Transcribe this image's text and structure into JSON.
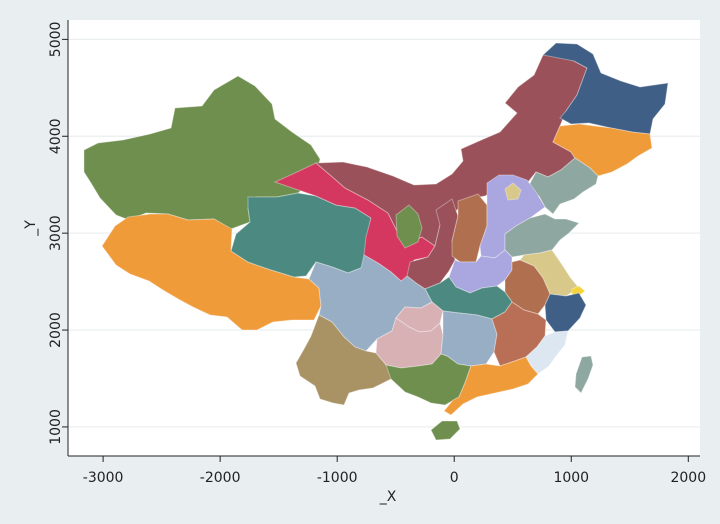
{
  "chart_data": {
    "type": "map",
    "xlabel": "_X",
    "ylabel": "_Y",
    "xlim": [
      -3300,
      2100
    ],
    "ylim": [
      700,
      5200
    ],
    "xticks": [
      -3000,
      -2000,
      -1000,
      0,
      1000,
      2000
    ],
    "yticks": [
      1000,
      2000,
      3000,
      4000,
      5000
    ],
    "xtick_labels": [
      "-3000",
      "-2000",
      "-1000",
      "0",
      "1000",
      "2000"
    ],
    "ytick_labels": [
      "1000",
      "2000",
      "3000",
      "4000",
      "5000"
    ],
    "grid": true,
    "regions": [
      {
        "name": "Heilongjiang",
        "color": "#3f5f86"
      },
      {
        "name": "Jilin",
        "color": "#ef9b3a"
      },
      {
        "name": "Liaoning",
        "color": "#8ea7a0"
      },
      {
        "name": "Inner Mongolia",
        "color": "#9a5159"
      },
      {
        "name": "Xinjiang",
        "color": "#6f8f4f"
      },
      {
        "name": "Gansu",
        "color": "#d4375f"
      },
      {
        "name": "Qinghai",
        "color": "#4c8a81"
      },
      {
        "name": "Tibet",
        "color": "#ef9b3a"
      },
      {
        "name": "Ningxia",
        "color": "#6f8f4f"
      },
      {
        "name": "Shanxi",
        "color": "#b07050"
      },
      {
        "name": "Hebei",
        "color": "#aaa6df"
      },
      {
        "name": "Shandong",
        "color": "#8ea7a0"
      },
      {
        "name": "Beijing",
        "color": "#d8c98a"
      },
      {
        "name": "Henan",
        "color": "#aaa6df"
      },
      {
        "name": "Shaanxi",
        "color": "#9a5159"
      },
      {
        "name": "Sichuan",
        "color": "#97aec5"
      },
      {
        "name": "Chongqing",
        "color": "#d8b1b5"
      },
      {
        "name": "Hubei",
        "color": "#4c8a81"
      },
      {
        "name": "Anhui",
        "color": "#b07050"
      },
      {
        "name": "Jiangsu",
        "color": "#d8c98a"
      },
      {
        "name": "Shanghai",
        "color": "#f5d33a"
      },
      {
        "name": "Zhejiang",
        "color": "#3f5f86"
      },
      {
        "name": "Hunan",
        "color": "#97aec5"
      },
      {
        "name": "Jiangxi",
        "color": "#b96f55"
      },
      {
        "name": "Fujian",
        "color": "#dce7f1"
      },
      {
        "name": "Guizhou",
        "color": "#d8b1b5"
      },
      {
        "name": "Yunnan",
        "color": "#a99264"
      },
      {
        "name": "Guangxi",
        "color": "#6f8f4f"
      },
      {
        "name": "Guangdong",
        "color": "#ef9b3a"
      },
      {
        "name": "Hainan",
        "color": "#6f8f4f"
      },
      {
        "name": "Taiwan",
        "color": "#8ea7a0"
      }
    ]
  }
}
